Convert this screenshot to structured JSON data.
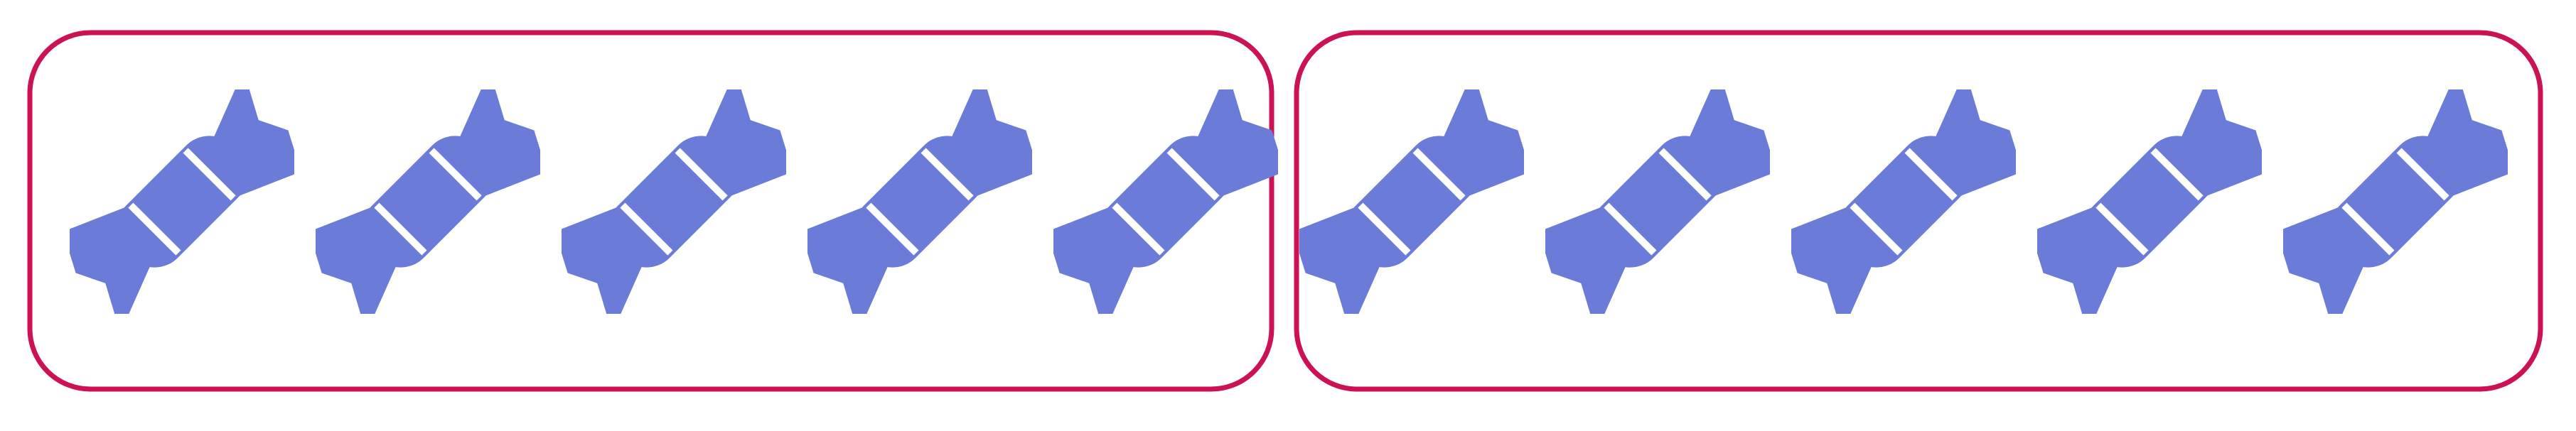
{
  "colors": {
    "background": "#ffffff",
    "frame_stroke": "#cc1155",
    "candy_fill": "#6b7bd8"
  },
  "icon": "candy-icon",
  "groups": [
    {
      "candy_count": 5
    },
    {
      "candy_count": 5
    }
  ]
}
